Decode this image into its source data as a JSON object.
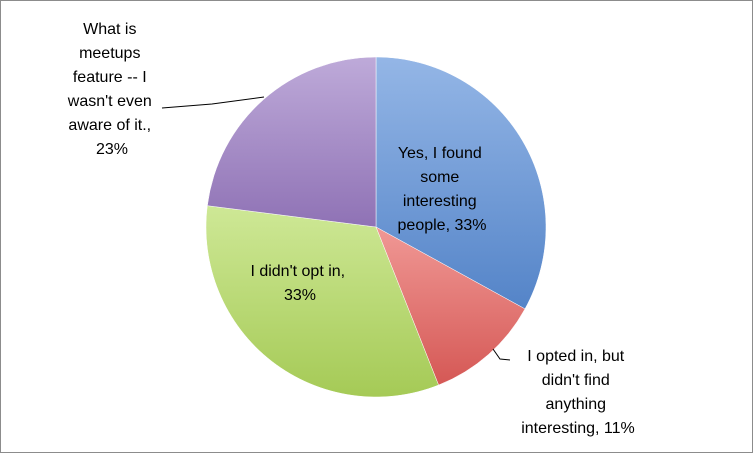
{
  "chart_data": {
    "type": "pie",
    "title": "",
    "legend": "none",
    "slices": [
      {
        "label_lines": [
          "Yes, I found",
          "some",
          "interesting",
          "people, 33%"
        ],
        "value": 33,
        "color": "#5b8fd9"
      },
      {
        "label_lines": [
          "I opted in, but",
          "didn't find",
          "anything",
          "interesting, 11%"
        ],
        "value": 11,
        "color": "#e8605c"
      },
      {
        "label_lines": [
          "I didn't opt in,",
          "33%"
        ],
        "value": 33,
        "color": "#b3dc5e"
      },
      {
        "label_lines": [
          "What is",
          "meetups",
          "feature -- I",
          "wasn't even",
          "aware of it.,",
          "23%"
        ],
        "value": 23,
        "color": "#9b7cc5"
      }
    ]
  }
}
